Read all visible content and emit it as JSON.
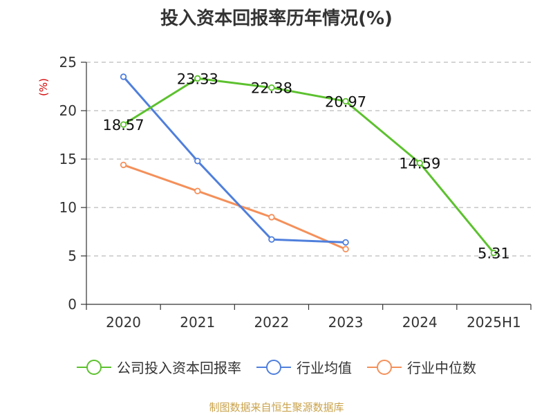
{
  "title": "投入资本回报率历年情况(%)",
  "source": "制图数据来自恒生聚源数据库",
  "chart_data": {
    "type": "line",
    "title": "投入资本回报率历年情况(%)",
    "ylabel": "(%)",
    "xlabel": "",
    "categories": [
      "2020",
      "2021",
      "2022",
      "2023",
      "2024",
      "2025H1"
    ],
    "ylim": [
      0,
      25
    ],
    "yticks": [
      0,
      5,
      10,
      15,
      20,
      25
    ],
    "grid": "horizontal-dashed",
    "legend_position": "bottom",
    "series": [
      {
        "name": "公司投入资本回报率",
        "color": "#5cc12e",
        "values": [
          18.57,
          23.33,
          22.38,
          20.97,
          14.59,
          5.31
        ],
        "labels": [
          "18.57",
          "23.33",
          "22.38",
          "20.97",
          "14.59",
          "5.31"
        ]
      },
      {
        "name": "行业均值",
        "color": "#4f7fdc",
        "values": [
          23.5,
          14.8,
          6.7,
          6.4,
          null,
          null
        ]
      },
      {
        "name": "行业中位数",
        "color": "#f4905a",
        "values": [
          14.4,
          11.7,
          9.0,
          5.7,
          null,
          null
        ]
      }
    ]
  }
}
